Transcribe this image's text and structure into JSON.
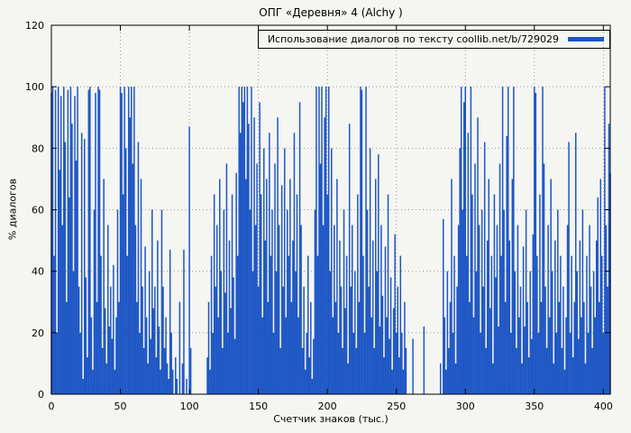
{
  "colors": {
    "bar": "#1d56c5",
    "grid": "#999999",
    "axis": "#000000",
    "background": "#f5f5f1",
    "text": "#000000"
  },
  "chart_data": {
    "type": "bar",
    "title": "ОПГ «Деревня» 4 (Alchy )",
    "legend_label": "Использование диалогов по тексту coollib.net/b/729029",
    "xlabel": "Счетчик знаков (тыс.)",
    "ylabel": "% диалогов",
    "xlim": [
      0,
      405
    ],
    "ylim": [
      0,
      120
    ],
    "xticks": [
      0,
      50,
      100,
      150,
      200,
      250,
      300,
      350,
      400
    ],
    "yticks": [
      0,
      20,
      40,
      60,
      80,
      100,
      120
    ],
    "grid": "dotted",
    "legend_position": "top-right",
    "x_start": 0,
    "x_step": 1,
    "values": [
      98,
      100,
      45,
      99,
      20,
      100,
      73,
      97,
      55,
      100,
      82,
      30,
      99,
      64,
      100,
      88,
      40,
      97,
      76,
      100,
      35,
      20,
      85,
      5,
      83,
      38,
      12,
      99,
      100,
      25,
      8,
      60,
      98,
      30,
      100,
      99,
      45,
      15,
      70,
      28,
      10,
      55,
      22,
      35,
      18,
      42,
      8,
      25,
      60,
      30,
      100,
      98,
      65,
      100,
      80,
      45,
      100,
      90,
      100,
      75,
      100,
      55,
      30,
      82,
      20,
      70,
      35,
      15,
      48,
      25,
      10,
      40,
      18,
      60,
      28,
      35,
      12,
      50,
      22,
      8,
      60,
      35,
      15,
      25,
      10,
      5,
      47,
      20,
      8,
      0,
      12,
      5,
      0,
      30,
      0,
      10,
      47,
      0,
      5,
      0,
      87,
      15,
      0,
      0,
      0,
      0,
      0,
      0,
      0,
      0,
      0,
      0,
      0,
      12,
      30,
      8,
      45,
      20,
      65,
      35,
      55,
      25,
      70,
      40,
      15,
      60,
      33,
      75,
      20,
      50,
      28,
      65,
      38,
      18,
      72,
      45,
      100,
      85,
      100,
      95,
      100,
      70,
      100,
      88,
      60,
      100,
      40,
      90,
      55,
      75,
      35,
      95,
      65,
      25,
      80,
      50,
      70,
      30,
      85,
      45,
      60,
      20,
      75,
      40,
      90,
      55,
      15,
      68,
      35,
      80,
      25,
      60,
      45,
      70,
      30,
      50,
      85,
      40,
      65,
      25,
      95,
      55,
      15,
      35,
      8,
      20,
      45,
      12,
      30,
      5,
      18,
      60,
      100,
      45,
      100,
      75,
      100,
      55,
      90,
      100,
      65,
      100,
      40,
      80,
      25,
      55,
      30,
      70,
      20,
      50,
      35,
      15,
      60,
      28,
      45,
      10,
      88,
      35,
      55,
      20,
      40,
      15,
      65,
      30,
      100,
      99,
      45,
      20,
      100,
      60,
      35,
      80,
      25,
      50,
      15,
      70,
      40,
      78,
      22,
      55,
      32,
      12,
      48,
      25,
      65,
      18,
      38,
      8,
      28,
      52,
      20,
      35,
      12,
      45,
      20,
      8,
      30,
      15,
      0,
      0,
      0,
      0,
      18,
      0,
      0,
      0,
      0,
      0,
      0,
      0,
      22,
      0,
      0,
      0,
      0,
      0,
      0,
      0,
      0,
      0,
      0,
      0,
      10,
      0,
      57,
      25,
      8,
      40,
      15,
      30,
      70,
      20,
      45,
      10,
      35,
      55,
      80,
      100,
      60,
      95,
      100,
      45,
      85,
      30,
      100,
      65,
      25,
      75,
      40,
      90,
      55,
      20,
      60,
      35,
      82,
      15,
      50,
      70,
      28,
      45,
      10,
      65,
      38,
      55,
      22,
      75,
      45,
      100,
      60,
      30,
      84,
      100,
      50,
      20,
      70,
      100,
      40,
      15,
      55,
      25,
      35,
      10,
      48,
      22,
      60,
      30,
      12,
      40,
      18,
      52,
      100,
      98,
      45,
      20,
      65,
      30,
      100,
      75,
      35,
      15,
      55,
      25,
      70,
      40,
      10,
      50,
      20,
      60,
      30,
      45,
      15,
      35,
      8,
      25,
      55,
      82,
      20,
      45,
      12,
      30,
      85,
      40,
      18,
      50,
      25,
      60,
      30,
      10,
      45,
      20,
      55,
      35,
      15,
      40,
      25,
      50,
      64,
      30,
      70,
      45,
      20,
      100,
      55,
      35,
      88,
      72
    ]
  }
}
